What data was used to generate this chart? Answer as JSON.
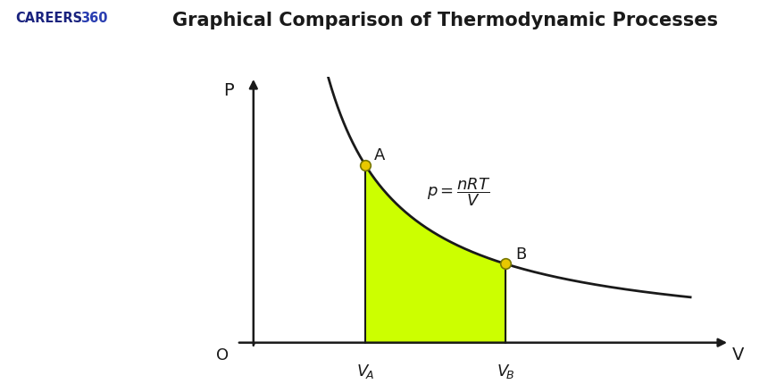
{
  "title": "Graphical Comparison of Thermodynamic Processes",
  "title_fontsize": 15,
  "title_fontweight": "bold",
  "background_color": "#ffffff",
  "curve_color": "#1a1a1a",
  "fill_color": "#ccff00",
  "point_color": "#e8c800",
  "point_edge_color": "#777700",
  "VA": 2.0,
  "VB": 4.5,
  "nRT": 10.0,
  "V_start": 1.1,
  "V_end": 7.8,
  "xlim": [
    0,
    8.5
  ],
  "ylim": [
    -0.3,
    7.5
  ],
  "label_fontsize": 13,
  "equation_fontsize": 13,
  "careers_color": "#1a237e",
  "careers_360_color": "#2a3eb1",
  "dot_size": 70
}
